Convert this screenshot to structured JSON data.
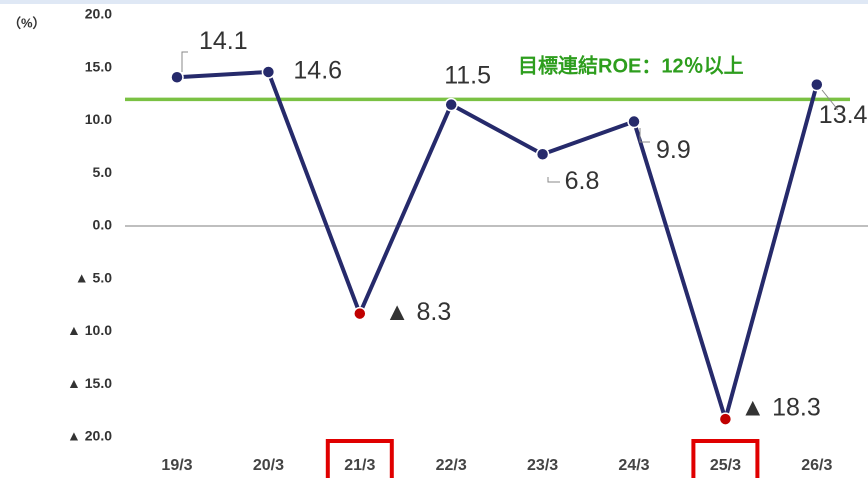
{
  "chart_data": {
    "type": "line",
    "unit_label": "（%）",
    "categories": [
      "19/3",
      "20/3",
      "21/3",
      "22/3",
      "23/3",
      "24/3",
      "25/3",
      "26/3"
    ],
    "series": [
      {
        "name": "連結ROE",
        "color": "#262a6b",
        "negative_color": "#c00000",
        "values": [
          14.1,
          14.6,
          -8.3,
          11.5,
          6.8,
          9.9,
          -18.3,
          13.4
        ],
        "value_labels": [
          "14.1",
          "14.6",
          "▲ 8.3",
          "11.5",
          "6.8",
          "9.9",
          "▲ 18.3",
          "13.4"
        ]
      }
    ],
    "ylim": [
      -20,
      20
    ],
    "yticks": [
      {
        "value": 20,
        "label": "20.0"
      },
      {
        "value": 15,
        "label": "15.0"
      },
      {
        "value": 10,
        "label": "10.0"
      },
      {
        "value": 5,
        "label": "5.0"
      },
      {
        "value": 0,
        "label": "0.0"
      },
      {
        "value": -5,
        "label": "▲ 5.0"
      },
      {
        "value": -10,
        "label": "▲ 10.0"
      },
      {
        "value": -15,
        "label": "▲ 15.0"
      },
      {
        "value": -20,
        "label": "▲ 20.0"
      }
    ],
    "target": {
      "value": 12,
      "label": "目標連結ROE：12％以上",
      "color": "#7ac143",
      "label_color": "#2e9e1e"
    },
    "highlighted_categories": [
      2,
      6
    ],
    "highlight_color": "#e00000"
  }
}
